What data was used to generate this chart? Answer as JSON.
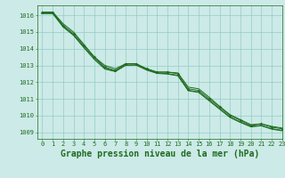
{
  "title": "Graphe pression niveau de la mer (hPa)",
  "bg_color": "#cceae7",
  "grid_color": "#88c4be",
  "line_color": "#1e6b1e",
  "marker_color": "#1e6b1e",
  "xlim": [
    -0.5,
    23
  ],
  "ylim": [
    1008.6,
    1016.6
  ],
  "yticks": [
    1009,
    1010,
    1011,
    1012,
    1013,
    1014,
    1015,
    1016
  ],
  "xticks": [
    0,
    1,
    2,
    3,
    4,
    5,
    6,
    7,
    8,
    9,
    10,
    11,
    12,
    13,
    14,
    15,
    16,
    17,
    18,
    19,
    20,
    21,
    22,
    23
  ],
  "series": [
    [
      1016.2,
      1016.2,
      1015.4,
      1014.9,
      1014.2,
      1013.5,
      1012.9,
      1012.7,
      1013.1,
      1013.1,
      1012.8,
      1012.6,
      1012.6,
      1012.5,
      1011.6,
      1011.5,
      1011.0,
      1010.5,
      1010.0,
      1009.7,
      1009.4,
      1009.5,
      1009.3,
      1009.2
    ],
    [
      1016.1,
      1016.1,
      1015.3,
      1014.8,
      1014.05,
      1013.35,
      1012.78,
      1012.63,
      1013.0,
      1013.02,
      1012.72,
      1012.52,
      1012.48,
      1012.38,
      1011.48,
      1011.38,
      1010.88,
      1010.38,
      1009.88,
      1009.58,
      1009.32,
      1009.38,
      1009.18,
      1009.08
    ],
    [
      1016.15,
      1016.15,
      1015.35,
      1014.82,
      1014.12,
      1013.42,
      1012.83,
      1012.68,
      1013.03,
      1013.03,
      1012.75,
      1012.55,
      1012.51,
      1012.41,
      1011.51,
      1011.41,
      1010.91,
      1010.41,
      1009.91,
      1009.61,
      1009.35,
      1009.41,
      1009.21,
      1009.11
    ],
    [
      1016.2,
      1016.2,
      1015.5,
      1015.0,
      1014.25,
      1013.5,
      1013.0,
      1012.8,
      1013.1,
      1013.1,
      1012.8,
      1012.6,
      1012.6,
      1012.55,
      1011.7,
      1011.6,
      1011.1,
      1010.55,
      1010.05,
      1009.75,
      1009.45,
      1009.5,
      1009.35,
      1009.25
    ]
  ],
  "title_fontsize": 7,
  "tick_fontsize": 5,
  "label_color": "#1e6b1e",
  "linewidth": 0.7,
  "markersize": 2.5
}
